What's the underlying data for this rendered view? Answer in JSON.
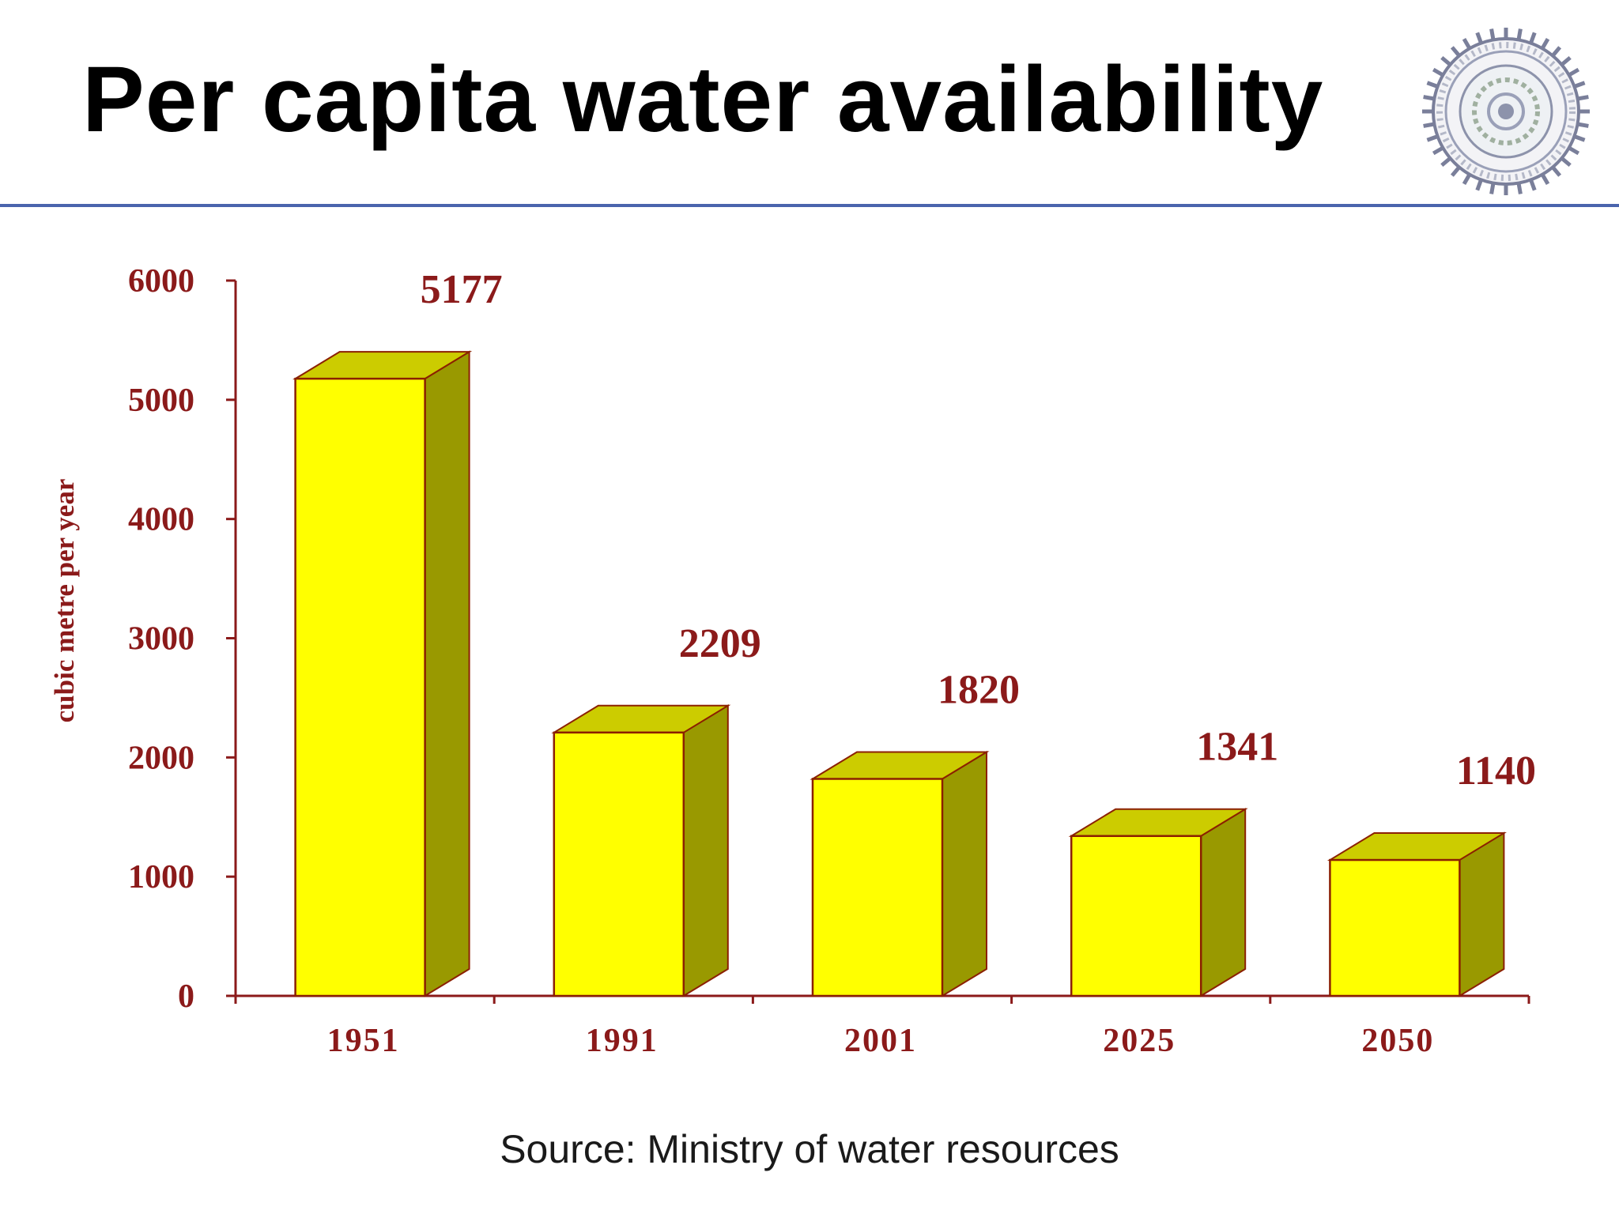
{
  "slide": {
    "title": "Per capita water availability",
    "source": "Source:  Ministry of water resources"
  },
  "colors": {
    "bar_front": "#ffff00",
    "bar_top": "#cccc00",
    "bar_side": "#999900",
    "bar_edge": "#8b2000",
    "axis": "#8b1a1a",
    "label_text": "#8b1a1a",
    "rule": "#4a64ad"
  },
  "logo": {
    "icon": "institute-seal-icon"
  },
  "chart_data": {
    "type": "bar",
    "style": "3d-column",
    "categories": [
      "1951",
      "1991",
      "2001",
      "2025",
      "2050"
    ],
    "values": [
      5177,
      2209,
      1820,
      1341,
      1140
    ],
    "data_labels": [
      "5177",
      "2209",
      "1820",
      "1341",
      "1140"
    ],
    "ylabel": "cubic metre per year",
    "xlabel": "",
    "ylim": [
      0,
      6000
    ],
    "yticks": [
      0,
      1000,
      2000,
      3000,
      4000,
      5000,
      6000
    ],
    "grid": false,
    "legend": "none"
  }
}
